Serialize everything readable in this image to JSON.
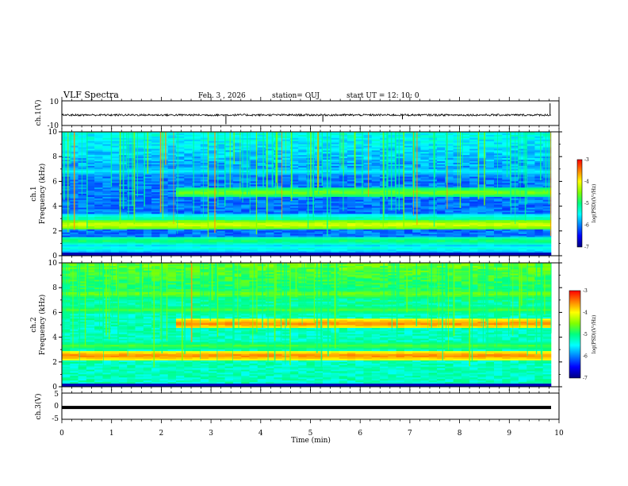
{
  "header": {
    "title": "VLF Spectra",
    "date": "Feb. 3  , 2026",
    "station": "station= OUJ",
    "start": "start  UT =   12: 10: 0"
  },
  "colors": {
    "ink": "#000000",
    "colormap": [
      "#000080",
      "#0000ff",
      "#0080ff",
      "#00ffff",
      "#00ff80",
      "#80ff00",
      "#ffff00",
      "#ff8000",
      "#ff0000",
      "#ffffff"
    ]
  },
  "chart_data": [
    {
      "type": "line",
      "id": "ch1-waveform",
      "title": "",
      "ylabel": "ch.1(V)",
      "ylim": [
        -10,
        10
      ],
      "yticks": [
        "10",
        "-10"
      ],
      "xlim": [
        0,
        10
      ],
      "baseline_value": -1.5,
      "noise_amplitude": 0.8,
      "spikes": [
        {
          "x": 3.3,
          "y": -9
        },
        {
          "x": 5.25,
          "y": -7
        },
        {
          "x": 6.85,
          "y": -5
        },
        {
          "x": 9.82,
          "y": 8
        }
      ],
      "end_x": 9.84
    },
    {
      "type": "heatmap",
      "id": "ch1-spectrogram",
      "ylabel": "ch.1",
      "ylabel2": "Frequency (kHz)",
      "ylim": [
        0,
        10
      ],
      "yticks": [
        "0",
        "2",
        "4",
        "6",
        "8",
        "10"
      ],
      "xlim": [
        0,
        10
      ],
      "data_extent_min": 9.84,
      "colorbar": {
        "label": "log(PSD)(V²/Hz)",
        "range": [
          -7,
          -3
        ],
        "ticks": [
          "-3",
          "-4",
          "-5",
          "-6",
          "-7"
        ]
      },
      "bands_khz": [
        {
          "f": 0.6,
          "level": 0.4
        },
        {
          "f": 1.2,
          "level": 0.5
        },
        {
          "f": 2.5,
          "level": 0.7
        },
        {
          "f": 3.0,
          "level": 0.45
        },
        {
          "f": 4.1,
          "level": 0.05
        },
        {
          "f": 5.1,
          "level": 0.6,
          "start_min": 2.3
        },
        {
          "f": 6.8,
          "level": 0.35
        }
      ]
    },
    {
      "type": "heatmap",
      "id": "ch2-spectrogram",
      "ylabel": "ch.2",
      "ylabel2": "Frequency (kHz)",
      "ylim": [
        0,
        10
      ],
      "yticks": [
        "0",
        "2",
        "4",
        "6",
        "8",
        "10"
      ],
      "xlim": [
        0,
        10
      ],
      "data_extent_min": 9.84,
      "colorbar": {
        "label": "log(PSD)(V²/Hz)",
        "range": [
          -7,
          -3
        ],
        "ticks": [
          "-3",
          "-4",
          "-5",
          "-6",
          "-7"
        ]
      },
      "bands_khz": [
        {
          "f": 2.5,
          "level": 0.85
        },
        {
          "f": 3.3,
          "level": 0.55
        },
        {
          "f": 5.1,
          "level": 0.85,
          "start_min": 2.3
        },
        {
          "f": 6.2,
          "level": 0.55
        },
        {
          "f": 7.5,
          "level": 0.6
        }
      ]
    },
    {
      "type": "line",
      "id": "ch3-waveform",
      "ylabel": "ch.3(V)",
      "ylim": [
        -5,
        5
      ],
      "yticks": [
        "5",
        "0",
        "-5"
      ],
      "xlim": [
        0,
        10
      ],
      "baseline_value": -0.5,
      "end_x": 9.84
    }
  ],
  "xaxis": {
    "label": "Time (min)",
    "ticks": [
      "0",
      "1",
      "2",
      "3",
      "4",
      "5",
      "6",
      "7",
      "8",
      "9",
      "10"
    ]
  }
}
